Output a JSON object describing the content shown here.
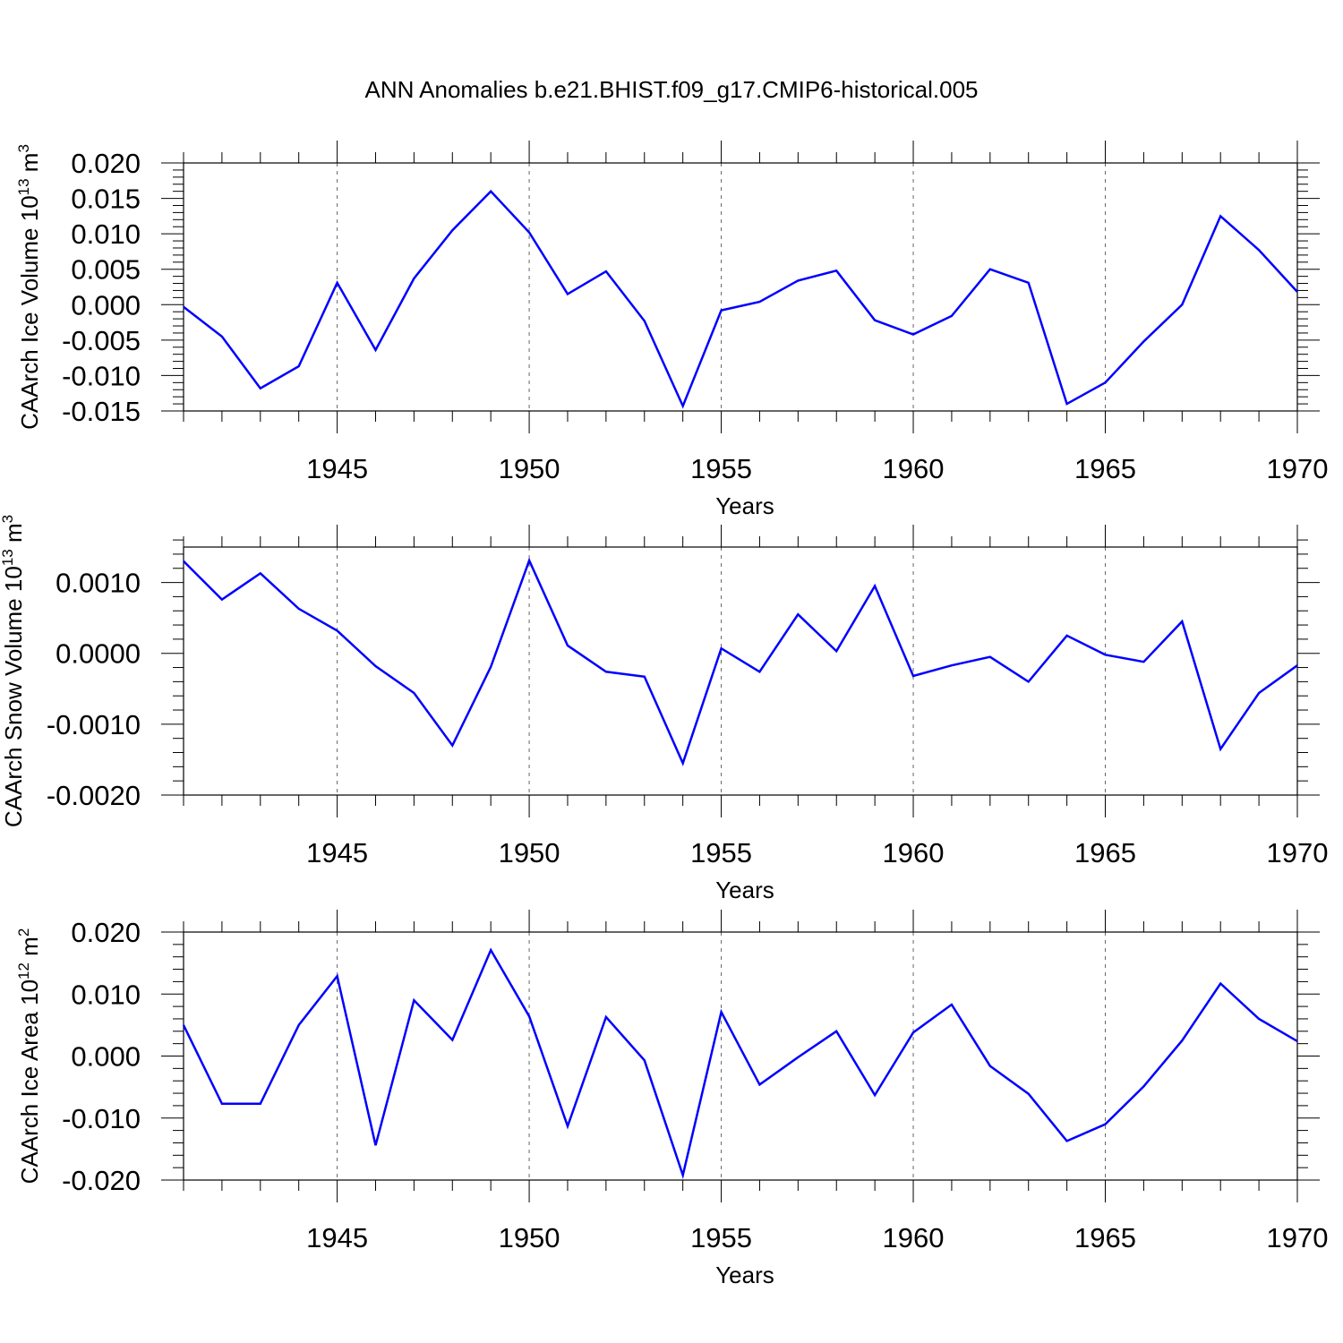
{
  "figure": {
    "title": "ANN Anomalies b.e21.BHIST.f09_g17.CMIP6-historical.005"
  },
  "colors": {
    "line": "#0000ff",
    "frame": "#000000",
    "grid": "#666666"
  },
  "chart_data": [
    {
      "type": "line",
      "ylabel_main": "CAArch Ice Volume 10",
      "ylabel_sup": "13",
      "ylabel_unit": " m",
      "ylabel_unit_sup": "3",
      "xlabel": "Years",
      "xlim": [
        1941,
        1970
      ],
      "ylim": [
        -0.015,
        0.02
      ],
      "x_ticks": [
        1945,
        1950,
        1955,
        1960,
        1965,
        1970
      ],
      "x_tick_labels": [
        "1945",
        "1950",
        "1955",
        "1960",
        "1965",
        "1970"
      ],
      "y_ticks": [
        -0.015,
        -0.01,
        -0.005,
        0.0,
        0.005,
        0.01,
        0.015,
        0.02
      ],
      "y_tick_labels": [
        "-0.015",
        "-0.010",
        "-0.005",
        "0.000",
        "0.005",
        "0.010",
        "0.015",
        "0.020"
      ],
      "y_minor_step": 0.001,
      "x": [
        1941,
        1942,
        1943,
        1944,
        1945,
        1946,
        1947,
        1948,
        1949,
        1950,
        1951,
        1952,
        1953,
        1954,
        1955,
        1956,
        1957,
        1958,
        1959,
        1960,
        1961,
        1962,
        1963,
        1964,
        1965,
        1966,
        1967,
        1968,
        1969,
        1970
      ],
      "values": [
        -0.0003,
        -0.0045,
        -0.0118,
        -0.0087,
        0.0031,
        -0.0064,
        0.0037,
        0.0105,
        0.016,
        0.0102,
        0.0015,
        0.0047,
        -0.0023,
        -0.0143,
        -0.0008,
        0.0004,
        0.0034,
        0.0048,
        -0.0022,
        -0.0042,
        -0.0016,
        0.005,
        0.0031,
        -0.014,
        -0.011,
        -0.0052,
        0.0,
        0.0125,
        0.0077,
        0.0018
      ]
    },
    {
      "type": "line",
      "ylabel_main": "CAArch Snow Volume 10",
      "ylabel_sup": "13",
      "ylabel_unit": " m",
      "ylabel_unit_sup": "3",
      "xlabel": "Years",
      "xlim": [
        1941,
        1970
      ],
      "ylim": [
        -0.002,
        0.0015
      ],
      "x_ticks": [
        1945,
        1950,
        1955,
        1960,
        1965,
        1970
      ],
      "x_tick_labels": [
        "1945",
        "1950",
        "1955",
        "1960",
        "1965",
        "1970"
      ],
      "y_ticks": [
        -0.002,
        -0.001,
        0.0,
        0.001
      ],
      "y_tick_labels": [
        "-0.0020",
        "-0.0010",
        "0.0000",
        "0.0010"
      ],
      "y_minor_step": 0.0002,
      "x": [
        1941,
        1942,
        1943,
        1944,
        1945,
        1946,
        1947,
        1948,
        1949,
        1950,
        1951,
        1952,
        1953,
        1954,
        1955,
        1956,
        1957,
        1958,
        1959,
        1960,
        1961,
        1962,
        1963,
        1964,
        1965,
        1966,
        1967,
        1968,
        1969,
        1970
      ],
      "values": [
        0.0013,
        0.00076,
        0.00113,
        0.00063,
        0.00032,
        -0.00018,
        -0.00056,
        -0.0013,
        -0.00019,
        0.00131,
        0.00011,
        -0.00026,
        -0.00033,
        -0.00155,
        7e-05,
        -0.00026,
        0.00055,
        3e-05,
        0.00095,
        -0.00032,
        -0.00017,
        -5e-05,
        -0.0004,
        0.00025,
        -2e-05,
        -0.00012,
        0.00045,
        -0.00135,
        -0.00056,
        -0.00017
      ]
    },
    {
      "type": "line",
      "ylabel_main": "CAArch Ice Area 10",
      "ylabel_sup": "12",
      "ylabel_unit": " m",
      "ylabel_unit_sup": "2",
      "xlabel": "Years",
      "xlim": [
        1941,
        1970
      ],
      "ylim": [
        -0.02,
        0.02
      ],
      "x_ticks": [
        1945,
        1950,
        1955,
        1960,
        1965,
        1970
      ],
      "x_tick_labels": [
        "1945",
        "1950",
        "1955",
        "1960",
        "1965",
        "1970"
      ],
      "y_ticks": [
        -0.02,
        -0.01,
        0.0,
        0.01,
        0.02
      ],
      "y_tick_labels": [
        "-0.020",
        "-0.010",
        "0.000",
        "0.010",
        "0.020"
      ],
      "y_minor_step": 0.002,
      "x": [
        1941,
        1942,
        1943,
        1944,
        1945,
        1946,
        1947,
        1948,
        1949,
        1950,
        1951,
        1952,
        1953,
        1954,
        1955,
        1956,
        1957,
        1958,
        1959,
        1960,
        1961,
        1962,
        1963,
        1964,
        1965,
        1966,
        1967,
        1968,
        1969,
        1970
      ],
      "values": [
        0.005,
        -0.0077,
        -0.0077,
        0.005,
        0.0129,
        -0.0144,
        0.009,
        0.0026,
        0.0171,
        0.0064,
        -0.0113,
        0.0063,
        -0.0007,
        -0.0192,
        0.0071,
        -0.0046,
        -0.0002,
        0.004,
        -0.0063,
        0.0038,
        0.0083,
        -0.0016,
        -0.0061,
        -0.0137,
        -0.011,
        -0.0049,
        0.0025,
        0.0117,
        0.006,
        0.0024
      ]
    }
  ]
}
